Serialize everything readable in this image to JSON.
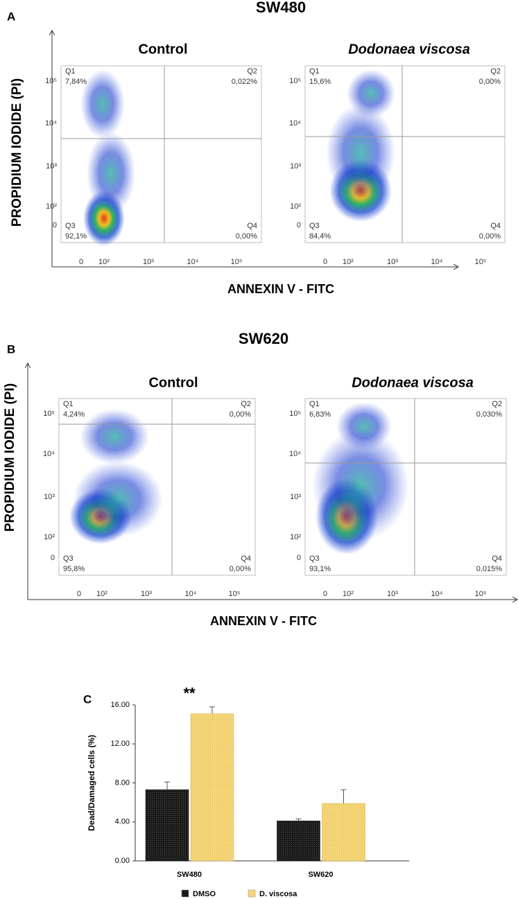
{
  "panels": [
    {
      "letter": "A",
      "title": "SW480",
      "y_label": "PROPIDIUM IODIDE (PI)",
      "x_label": "ANNEXIN V - FITC",
      "yticks": [
        "10⁵",
        "10⁴",
        "10³",
        "10²",
        "0"
      ],
      "xticks": [
        "0",
        "10²",
        "10³",
        "10⁴",
        "10⁵"
      ],
      "plots": [
        {
          "title": "Control",
          "quadrants": [
            {
              "name": "Q1",
              "percent": "7,84%"
            },
            {
              "name": "Q2",
              "percent": "0,022%"
            },
            {
              "name": "Q3",
              "percent": "92,1%"
            },
            {
              "name": "Q4",
              "percent": "0,00%"
            }
          ]
        },
        {
          "title": "Dodonaea viscosa",
          "quadrants": [
            {
              "name": "Q1",
              "percent": "15,6%"
            },
            {
              "name": "Q2",
              "percent": "0,00%"
            },
            {
              "name": "Q3",
              "percent": "84,4%"
            },
            {
              "name": "Q4",
              "percent": "0,00%"
            }
          ]
        }
      ]
    },
    {
      "letter": "B",
      "title": "SW620",
      "y_label": "PROPIDIUM IODIDE (PI)",
      "x_label": "ANNEXIN V - FITC",
      "yticks": [
        "10⁵",
        "10⁴",
        "10³",
        "10²",
        "0"
      ],
      "xticks": [
        "0",
        "10²",
        "10³",
        "10⁴",
        "10⁵"
      ],
      "plots": [
        {
          "title": "Control",
          "quadrants": [
            {
              "name": "Q1",
              "percent": "4,24%"
            },
            {
              "name": "Q2",
              "percent": "0,00%"
            },
            {
              "name": "Q3",
              "percent": "95,8%"
            },
            {
              "name": "Q4",
              "percent": "0,00%"
            }
          ]
        },
        {
          "title": "Dodonaea viscosa",
          "quadrants": [
            {
              "name": "Q1",
              "percent": "6,83%"
            },
            {
              "name": "Q2",
              "percent": "0,030%"
            },
            {
              "name": "Q3",
              "percent": "93,1%"
            },
            {
              "name": "Q4",
              "percent": "0,015%"
            }
          ]
        }
      ]
    }
  ],
  "chart_data": {
    "type": "bar",
    "panel_letter": "C",
    "y_label": "Dead/Damaged cells (%)",
    "categories": [
      "SW480",
      "SW620"
    ],
    "series": [
      {
        "name": "DMSO",
        "color": "#1a1a1a",
        "values": [
          7.3,
          4.1
        ],
        "errors": [
          0.8,
          0.2
        ]
      },
      {
        "name": "D. viscosa",
        "color": "#f5d77a",
        "values": [
          15.1,
          5.9
        ],
        "errors": [
          0.7,
          1.4
        ]
      }
    ],
    "ylim": [
      0,
      16
    ],
    "yticks": [
      {
        "value": 0,
        "label": "0.00"
      },
      {
        "value": 4,
        "label": "4.00"
      },
      {
        "value": 8,
        "label": "8.00"
      },
      {
        "value": 12,
        "label": "12.00"
      },
      {
        "value": 16,
        "label": "16.00"
      }
    ],
    "annotations": [
      {
        "text": "**",
        "category": 0,
        "series": 1
      }
    ],
    "legend": "bottom"
  }
}
